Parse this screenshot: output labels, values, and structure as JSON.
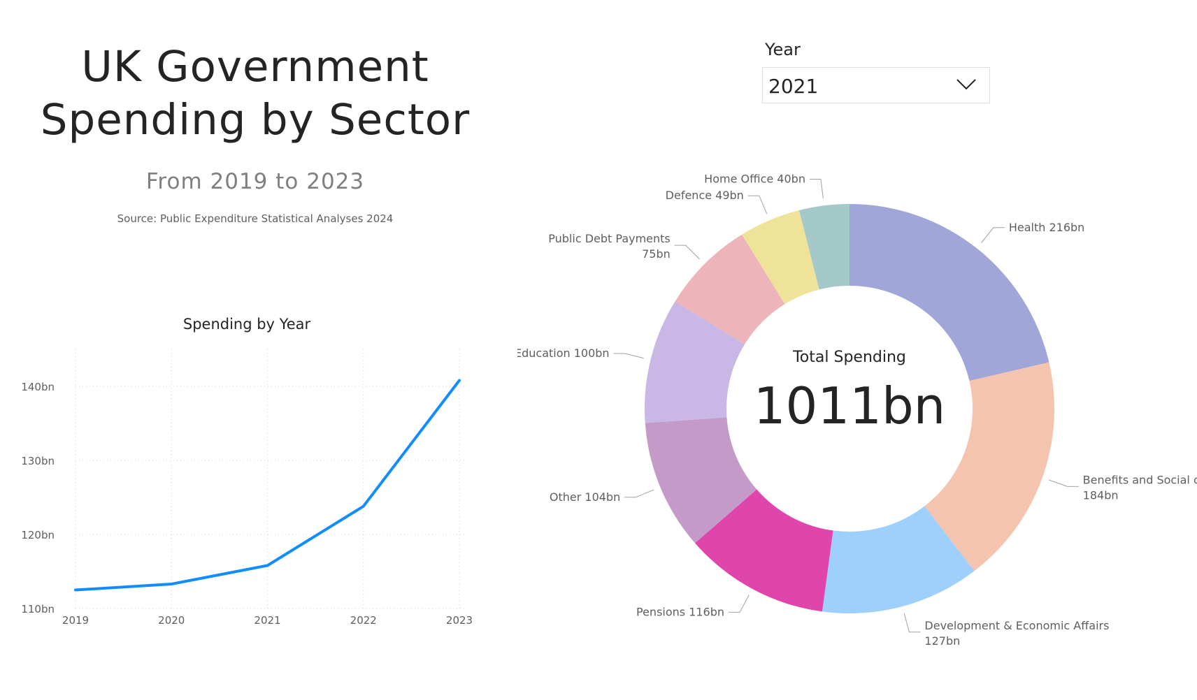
{
  "header": {
    "title_line1": "UK Government",
    "title_line2": "Spending by Sector",
    "subtitle": "From 2019 to 2023",
    "source": "Source: Public Expenditure Statistical Analyses 2024"
  },
  "slicer": {
    "label": "Year",
    "selected": "2021",
    "icon": "chevron-down-icon"
  },
  "colors": {
    "line": "#118DFF",
    "text": "#252423",
    "muted": "#605e5c",
    "grid": "#d0d0d0"
  },
  "chart_data": [
    {
      "type": "line",
      "title": "Spending by Year",
      "x": [
        "2019",
        "2020",
        "2021",
        "2022",
        "2023"
      ],
      "series": [
        {
          "values": [
            112.5,
            113.3,
            115.8,
            123.8,
            140.8
          ]
        }
      ],
      "ylim": [
        110,
        145
      ],
      "yticks": [
        110,
        120,
        130,
        140
      ],
      "ytick_labels": [
        "110bn",
        "120bn",
        "130bn",
        "140bn"
      ],
      "grid": true,
      "color": "#118DFF"
    },
    {
      "type": "pie",
      "variant": "donut",
      "center_label": "Total Spending",
      "center_value": "1011bn",
      "slices": [
        {
          "label": "Health",
          "value": 216,
          "value_label": "216bn",
          "color": "#A1A6D8"
        },
        {
          "label": "Benefits and Social care",
          "value": 184,
          "value_label": "184bn",
          "color": "#F4C4AE"
        },
        {
          "label": "Development & Economic Affairs",
          "value": 127,
          "value_label": "127bn",
          "color": "#9FD0FC"
        },
        {
          "label": "Pensions",
          "value": 116,
          "value_label": "116bn",
          "color": "#E045AB"
        },
        {
          "label": "Other",
          "value": 104,
          "value_label": "104bn",
          "color": "#C49AC8"
        },
        {
          "label": "Education",
          "value": 100,
          "value_label": "100bn",
          "color": "#C9B7E6"
        },
        {
          "label": "Public Debt Payments",
          "value": 75,
          "value_label": "75bn",
          "color": "#EDB4BA"
        },
        {
          "label": "Defence",
          "value": 49,
          "value_label": "49bn",
          "color": "#EFE39A"
        },
        {
          "label": "Home Office",
          "value": 40,
          "value_label": "40bn",
          "color": "#A5C8C9"
        }
      ]
    }
  ]
}
